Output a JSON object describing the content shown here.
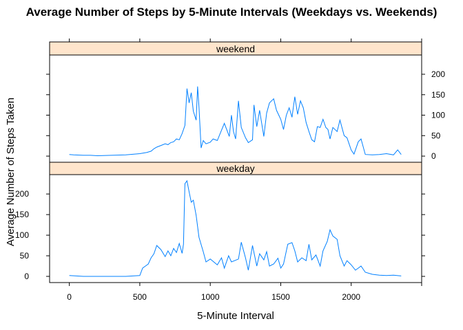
{
  "chart_data": {
    "type": "line",
    "title": "Average Number of Steps by 5-Minute Intervals (Weekdays vs. Weekends)",
    "xlabel": "5-Minute Interval",
    "ylabel": "Average Number of Steps Taken",
    "xlim": [
      -140,
      2500
    ],
    "ylim": [
      -15,
      247
    ],
    "x_ticks": [
      0,
      500,
      1000,
      1500,
      2000
    ],
    "y_ticks": [
      0,
      50,
      100,
      150,
      200
    ],
    "line_color": "#0080ff",
    "strip_color": "#ffe5cc",
    "grid": false,
    "panels": [
      {
        "name": "weekend",
        "x": [
          0,
          30,
          100,
          150,
          200,
          300,
          400,
          500,
          550,
          580,
          600,
          620,
          650,
          680,
          700,
          720,
          740,
          760,
          780,
          800,
          820,
          835,
          850,
          865,
          880,
          900,
          910,
          920,
          935,
          950,
          970,
          1000,
          1020,
          1050,
          1070,
          1100,
          1120,
          1135,
          1150,
          1165,
          1180,
          1200,
          1220,
          1250,
          1270,
          1300,
          1310,
          1330,
          1350,
          1380,
          1400,
          1420,
          1450,
          1470,
          1500,
          1520,
          1540,
          1560,
          1580,
          1600,
          1620,
          1640,
          1660,
          1680,
          1700,
          1720,
          1740,
          1760,
          1780,
          1800,
          1820,
          1835,
          1850,
          1870,
          1900,
          1920,
          1950,
          1970,
          2000,
          2020,
          2050,
          2070,
          2100,
          2150,
          2200,
          2250,
          2300,
          2330,
          2355
        ],
        "values": [
          4,
          3,
          2,
          2,
          1,
          2,
          3,
          6,
          9,
          12,
          18,
          22,
          26,
          30,
          28,
          33,
          35,
          42,
          40,
          55,
          75,
          165,
          130,
          155,
          110,
          88,
          170,
          120,
          20,
          38,
          30,
          34,
          42,
          38,
          55,
          80,
          62,
          48,
          100,
          60,
          42,
          135,
          70,
          45,
          33,
          40,
          125,
          72,
          112,
          48,
          105,
          130,
          140,
          112,
          90,
          65,
          100,
          118,
          95,
          145,
          102,
          135,
          118,
          82,
          60,
          40,
          35,
          72,
          70,
          90,
          70,
          65,
          42,
          70,
          60,
          88,
          50,
          45,
          15,
          5,
          35,
          42,
          4,
          3,
          4,
          6,
          3,
          15,
          4
        ]
      },
      {
        "name": "weekday",
        "x": [
          0,
          50,
          100,
          200,
          300,
          400,
          500,
          520,
          540,
          560,
          580,
          600,
          620,
          650,
          680,
          700,
          720,
          740,
          760,
          780,
          800,
          810,
          820,
          835,
          850,
          865,
          880,
          900,
          920,
          950,
          970,
          1000,
          1050,
          1080,
          1100,
          1130,
          1150,
          1200,
          1220,
          1250,
          1270,
          1300,
          1330,
          1350,
          1380,
          1400,
          1420,
          1450,
          1480,
          1500,
          1520,
          1550,
          1580,
          1600,
          1620,
          1650,
          1680,
          1700,
          1720,
          1750,
          1780,
          1800,
          1830,
          1850,
          1870,
          1900,
          1920,
          1950,
          1970,
          2000,
          2030,
          2050,
          2070,
          2100,
          2150,
          2200,
          2250,
          2300,
          2355
        ],
        "values": [
          2,
          1,
          0,
          0,
          0,
          0,
          2,
          20,
          25,
          30,
          45,
          55,
          75,
          65,
          48,
          62,
          50,
          68,
          58,
          80,
          56,
          78,
          225,
          232,
          205,
          180,
          185,
          148,
          95,
          60,
          35,
          42,
          28,
          45,
          20,
          50,
          35,
          42,
          83,
          45,
          15,
          75,
          25,
          55,
          40,
          60,
          25,
          30,
          44,
          20,
          30,
          78,
          82,
          62,
          35,
          45,
          38,
          78,
          40,
          52,
          25,
          62,
          85,
          113,
          98,
          90,
          50,
          25,
          38,
          28,
          15,
          20,
          25,
          10,
          5,
          3,
          2,
          3,
          1
        ]
      }
    ]
  }
}
